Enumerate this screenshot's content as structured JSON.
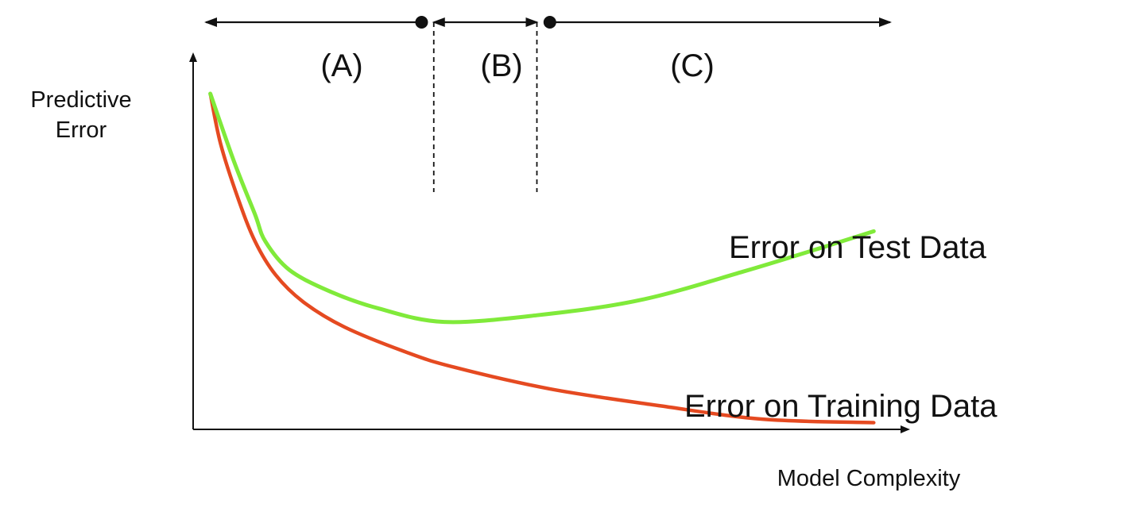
{
  "chart_data": {
    "type": "line",
    "title": "",
    "xlabel": "Model Complexity",
    "ylabel_lines": [
      "Predictive",
      "Error"
    ],
    "xlim": [
      0,
      100
    ],
    "ylim": [
      0,
      100
    ],
    "grid": false,
    "regions": [
      {
        "label": "(A)",
        "x_start": 0,
        "x_end": 33
      },
      {
        "label": "(B)",
        "x_start": 35,
        "x_end": 50
      },
      {
        "label": "(C)",
        "x_start": 52,
        "x_end": 101
      }
    ],
    "series": [
      {
        "name": "Error on Test Data",
        "color": "#80ea3a",
        "points": [
          [
            2.5,
            100
          ],
          [
            6,
            79.5
          ],
          [
            9,
            64
          ],
          [
            10.5,
            56
          ],
          [
            14,
            47.5
          ],
          [
            20,
            41
          ],
          [
            27,
            36
          ],
          [
            36.5,
            32
          ],
          [
            50,
            34
          ],
          [
            65,
            38.5
          ],
          [
            80,
            47
          ],
          [
            92,
            54.5
          ],
          [
            99,
            59
          ]
        ]
      },
      {
        "name": "Error on Training Data",
        "color": "#e54a21",
        "points": [
          [
            2.5,
            100
          ],
          [
            4,
            85
          ],
          [
            6.5,
            69
          ],
          [
            9,
            56
          ],
          [
            12,
            46
          ],
          [
            16,
            38
          ],
          [
            22,
            30.5
          ],
          [
            31,
            23
          ],
          [
            38,
            18.5
          ],
          [
            52,
            12
          ],
          [
            68,
            7
          ],
          [
            83,
            3
          ],
          [
            99,
            2
          ]
        ]
      }
    ],
    "region_marker_color": "#111111",
    "axis_color": "#111111"
  }
}
